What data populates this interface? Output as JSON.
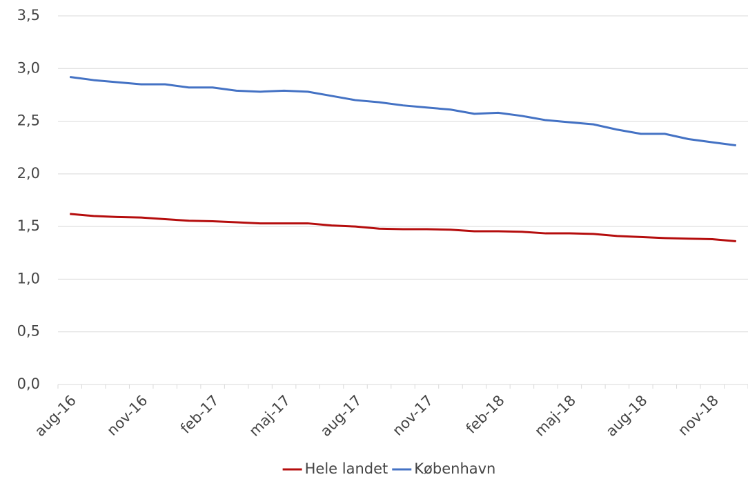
{
  "chart_data": {
    "type": "line",
    "categories": [
      "aug-16",
      null,
      null,
      "nov-16",
      null,
      null,
      "feb-17",
      null,
      null,
      "maj-17",
      null,
      null,
      "aug-17",
      null,
      null,
      "nov-17",
      null,
      null,
      "feb-18",
      null,
      null,
      "maj-18",
      null,
      null,
      "aug-18",
      null,
      null,
      "nov-18",
      null
    ],
    "series": [
      {
        "name": "Hele landet",
        "color": "#b50d0d",
        "values": [
          1.62,
          1.6,
          1.59,
          1.585,
          1.57,
          1.555,
          1.55,
          1.54,
          1.53,
          1.53,
          1.53,
          1.51,
          1.5,
          1.48,
          1.475,
          1.475,
          1.47,
          1.455,
          1.455,
          1.45,
          1.435,
          1.435,
          1.43,
          1.41,
          1.4,
          1.39,
          1.385,
          1.38,
          1.36
        ]
      },
      {
        "name": "København",
        "color": "#4472c4",
        "values": [
          2.92,
          2.89,
          2.87,
          2.85,
          2.85,
          2.82,
          2.82,
          2.79,
          2.78,
          2.79,
          2.78,
          2.74,
          2.7,
          2.68,
          2.65,
          2.63,
          2.61,
          2.57,
          2.58,
          2.55,
          2.51,
          2.49,
          2.47,
          2.42,
          2.38,
          2.38,
          2.33,
          2.3,
          2.27
        ]
      }
    ],
    "ylim": [
      0,
      3.5
    ],
    "yticks": [
      {
        "value": 0,
        "label": "0,0"
      },
      {
        "value": 0.5,
        "label": "0,5"
      },
      {
        "value": 1,
        "label": "1,0"
      },
      {
        "value": 1.5,
        "label": "1,5"
      },
      {
        "value": 2,
        "label": "2,0"
      },
      {
        "value": 2.5,
        "label": "2,5"
      },
      {
        "value": 3,
        "label": "3,0"
      },
      {
        "value": 3.5,
        "label": "3,5"
      }
    ],
    "grid": true,
    "legend": "bottom"
  }
}
